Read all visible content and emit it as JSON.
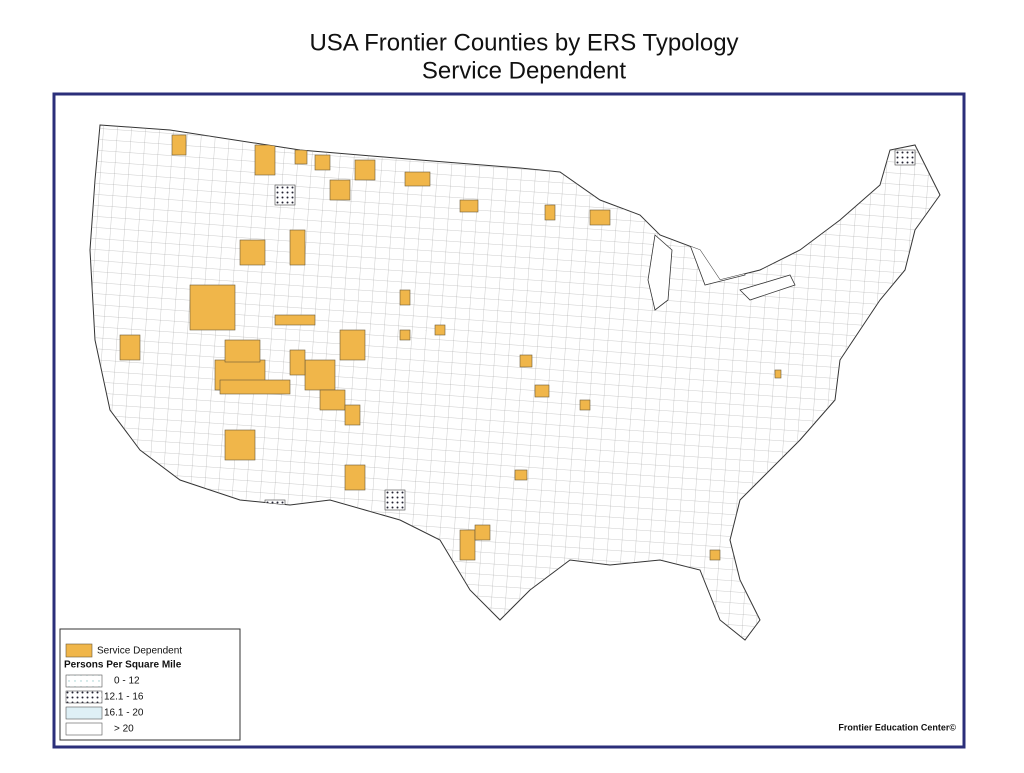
{
  "header": {
    "title": "USA Frontier Counties by ERS Typology",
    "subtitle": "Service Dependent"
  },
  "legend": {
    "category": "Service Dependent",
    "heading": "Persons Per Square Mile",
    "density_classes": [
      "0 - 12",
      "12.1 - 16",
      "16.1 - 20",
      "> 20"
    ]
  },
  "credit": "Frontier Education Center©"
}
